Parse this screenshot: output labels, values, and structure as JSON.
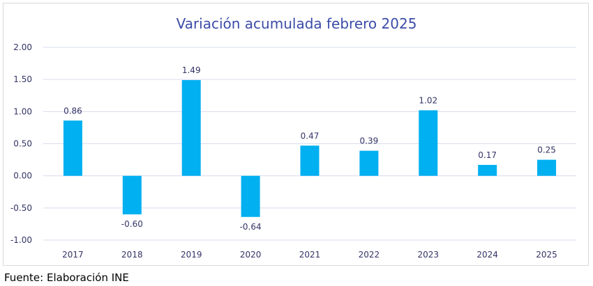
{
  "chart_data": {
    "type": "bar",
    "title": "Variación acumulada febrero 2025",
    "categories": [
      "2017",
      "2018",
      "2019",
      "2020",
      "2021",
      "2022",
      "2023",
      "2024",
      "2025"
    ],
    "values": [
      0.86,
      -0.6,
      1.49,
      -0.64,
      0.47,
      0.39,
      1.02,
      0.17,
      0.25
    ],
    "value_labels": [
      "0.86",
      "-0.60",
      "1.49",
      "-0.64",
      "0.47",
      "0.39",
      "1.02",
      "0.17",
      "0.25"
    ],
    "ylim": [
      -1.0,
      2.0
    ],
    "yticks": [
      "2.00",
      "1.50",
      "1.00",
      "0.50",
      "0.00",
      "-0.50",
      "-1.00"
    ],
    "ytick_values": [
      2.0,
      1.5,
      1.0,
      0.5,
      0.0,
      -0.5,
      -1.0
    ],
    "grid": true,
    "xlabel": "",
    "ylabel": "",
    "bar_color": "#00b0f0",
    "grid_color": "#d9dcef"
  },
  "source": "Fuente: Elaboración INE"
}
